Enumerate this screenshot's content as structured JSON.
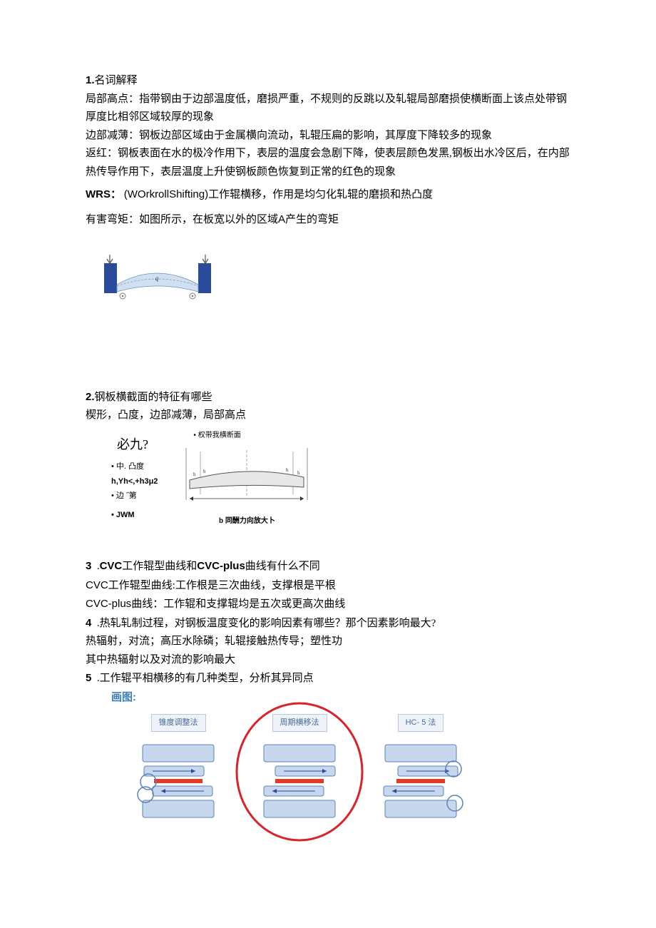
{
  "s1": {
    "title_num": "1.",
    "title": "名词解释",
    "p1": "局部高点：指带钢由于边部温度低，磨损严重，不规则的反跳以及轧辊局部磨损使横断面上该点处带钢厚度比相邻区域较厚的现象",
    "p2": "边部减薄：钢板边部区域由于金属横向流动，轧辊压扁的影响，其厚度下降较多的现象",
    "p3": "返红：钢板表面在水的极冷作用下，表层的温度会急剧下降，使表层颜色发黑,钢板出水冷区后，在内部热传导作用下，表层温度上升使钢板颜色恢复到正常的红色的现象",
    "wrs_b": "WRS：",
    "wrs_t": "(WOrkrollShifting)工作辊横移，作用是均匀化轧辊的磨损和热凸度",
    "p5a": "有害弯矩：如图所示，在板宽以外的区域",
    "p5b": "A",
    "p5c": "产生的弯矩"
  },
  "fig1": {
    "chock_color": "#2a4a9a",
    "roll_color": "#cfe0f2",
    "roll_stroke": "#6b91c4",
    "gear_color": "#7a7a7a",
    "w": 160,
    "h": 70
  },
  "s2": {
    "title_num": "2.",
    "title": "钢板横截面的特征有哪些",
    "p1": "楔形，凸度，边部减薄，局部高点"
  },
  "fig2": {
    "bijiu": "必九?",
    "l1": "• 中. 凸度",
    "l2": "h,Yh<,+h3μ2",
    "l3": "•    边 ˝第",
    "l4": "•    JWM",
    "right_label": "• 权带我横断面",
    "caption": "b 同酬力向放大卜",
    "line_color": "#777",
    "fill_color": "#e8e8e8"
  },
  "s3": {
    "num": "3",
    "dot": "  .",
    "t_b1": "CVC",
    "t1": "工作辊型曲线和",
    "t_b2": "CVC-plus",
    "t2": "曲线有什么不同",
    "p1a": "CVC",
    "p1b": "工作辊型曲线:工作根是三次曲线，支撑根是平根",
    "p2a": "CVC-plus",
    "p2b": "曲线：工作辊和支撑辊均是五次或更高次曲线"
  },
  "s4": {
    "num": "4",
    "dot": "  .",
    "t": "热轧轧制过程，对钢板温度变化的影响因素有哪些？那个因素影响最大?",
    "p1": "热辐射，对流；高压水除磷；轧辊接触热传导；塑性功",
    "p2": "其中热辐射以及对流的影响最大"
  },
  "s5": {
    "num": "5",
    "dot": "  .",
    "t": "工作辊平相横移的有几种类型，分析其异同点",
    "huatu": "画图:"
  },
  "fig3": {
    "m1": "锥度调整法",
    "m2": "周期横移法",
    "m3": "HC- 5 法",
    "roll_fill": "#c6d7ee",
    "roll_stroke": "#5b82b8",
    "strip_color": "#e03a2a",
    "ring_color": "#d8232a",
    "circle_color": "#5b82b8"
  }
}
